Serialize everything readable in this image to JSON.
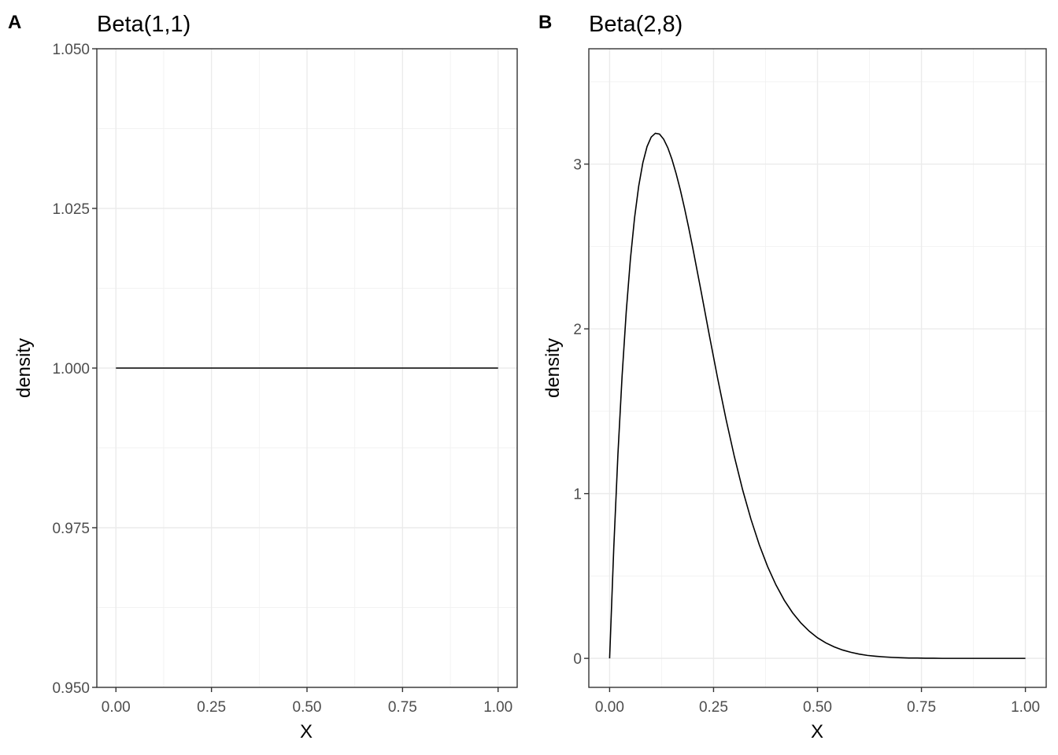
{
  "chart_data": [
    {
      "panel_tag": "A",
      "type": "line",
      "title": "Beta(1,1)",
      "xlabel": "X",
      "ylabel": "density",
      "x_ticks": [
        "0.00",
        "0.25",
        "0.50",
        "0.75",
        "1.00"
      ],
      "y_ticks": [
        "0.950",
        "0.975",
        "1.000",
        "1.025",
        "1.050"
      ],
      "xlim": [
        -0.05,
        1.05
      ],
      "ylim": [
        0.95,
        1.05
      ],
      "grid": true,
      "series": [
        {
          "x": [
            0,
            1
          ],
          "y": [
            1,
            1
          ]
        }
      ]
    },
    {
      "panel_tag": "B",
      "type": "line",
      "title": "Beta(2,8)",
      "xlabel": "X",
      "ylabel": "density",
      "x_ticks": [
        "0.00",
        "0.25",
        "0.50",
        "0.75",
        "1.00"
      ],
      "y_ticks": [
        "0",
        "1",
        "2",
        "3"
      ],
      "xlim": [
        -0.05,
        1.05
      ],
      "ylim": [
        -0.176,
        3.7
      ],
      "grid": true,
      "series": [
        {
          "x": [
            0,
            0.01,
            0.02,
            0.03,
            0.04,
            0.05,
            0.06,
            0.07,
            0.08,
            0.09,
            0.1,
            0.11,
            0.12,
            0.13,
            0.14,
            0.15,
            0.16,
            0.17,
            0.18,
            0.19,
            0.2,
            0.22,
            0.24,
            0.26,
            0.28,
            0.3,
            0.32,
            0.34,
            0.36,
            0.38,
            0.4,
            0.42,
            0.44,
            0.46,
            0.48,
            0.5,
            0.52,
            0.54,
            0.56,
            0.58,
            0.6,
            0.62,
            0.64,
            0.66,
            0.68,
            0.7,
            0.72,
            0.74,
            0.76,
            0.78,
            0.8,
            0.85,
            0.9,
            0.95,
            1
          ],
          "y": [
            0,
            0.671,
            1.239,
            1.713,
            2.105,
            2.423,
            2.674,
            2.867,
            3.009,
            3.106,
            3.164,
            3.187,
            3.182,
            3.151,
            3.099,
            3.028,
            2.942,
            2.844,
            2.734,
            2.616,
            2.491,
            2.228,
            1.959,
            1.697,
            1.451,
            1.225,
            1.022,
            0.844,
            0.689,
            0.557,
            0.446,
            0.353,
            0.277,
            0.215,
            0.165,
            0.125,
            0.094,
            0.07,
            0.051,
            0.037,
            0.026,
            0.018,
            0.013,
            0.009,
            0.006,
            0.004,
            0.002,
            0.002,
            0.001,
            0.001,
            0,
            0,
            0,
            0,
            0
          ]
        }
      ]
    }
  ]
}
